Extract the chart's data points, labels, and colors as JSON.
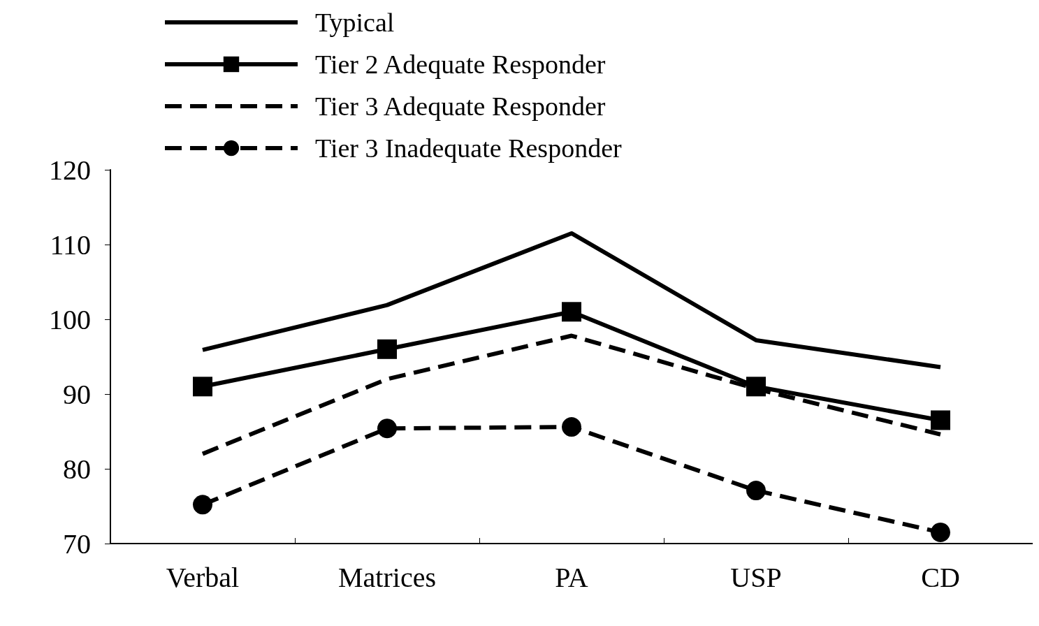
{
  "chart_data": {
    "type": "line",
    "categories": [
      "Verbal",
      "Matrices",
      "PA",
      "USP",
      "CD"
    ],
    "series": [
      {
        "name": "Typical",
        "color": "#000000",
        "marker": "none",
        "line_style": "solid",
        "values": [
          95.9,
          101.9,
          111.5,
          97.2,
          93.6
        ]
      },
      {
        "name": "Tier 2 Adequate Responder",
        "color": "#000000",
        "marker": "square",
        "line_style": "solid",
        "values": [
          91,
          96,
          101,
          91,
          86.5
        ]
      },
      {
        "name": "Tier 3 Adequate Responder",
        "color": "#000000",
        "marker": "none",
        "line_style": "dashed",
        "values": [
          82,
          92,
          97.8,
          90.7,
          84.6
        ]
      },
      {
        "name": "Tier 3 Inadequate Responder",
        "color": "#000000",
        "marker": "circle",
        "line_style": "dashed",
        "values": [
          75.2,
          85.4,
          85.6,
          77.1,
          71.5
        ]
      }
    ],
    "ylim": [
      70,
      120
    ],
    "yticks": [
      70,
      80,
      90,
      100,
      110,
      120
    ],
    "grid": false,
    "legend": "top left"
  }
}
